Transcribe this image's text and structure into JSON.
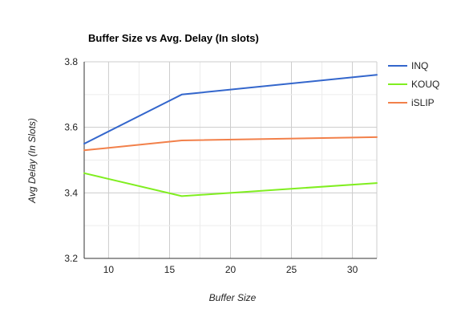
{
  "chart_data": {
    "type": "line",
    "title": "Buffer Size vs Avg. Delay (In slots)",
    "xlabel": "Buffer Size",
    "ylabel": "Avg Delay (In Slots)",
    "x": [
      8,
      16,
      32
    ],
    "xlim": [
      8,
      32
    ],
    "ylim": [
      3.2,
      3.8
    ],
    "x_ticks": [
      "10",
      "15",
      "20",
      "25",
      "30"
    ],
    "y_ticks": [
      "3.2",
      "3.4",
      "3.6",
      "3.8"
    ],
    "grid": true,
    "legend_position": "right",
    "series": [
      {
        "name": "INQ",
        "color": "#3366cc",
        "values": [
          3.55,
          3.7,
          3.76
        ]
      },
      {
        "name": "KOUQ",
        "color": "#80ee20",
        "values": [
          3.46,
          3.39,
          3.43
        ]
      },
      {
        "name": "iSLIP",
        "color": "#f2804a",
        "values": [
          3.53,
          3.56,
          3.57
        ]
      }
    ]
  }
}
